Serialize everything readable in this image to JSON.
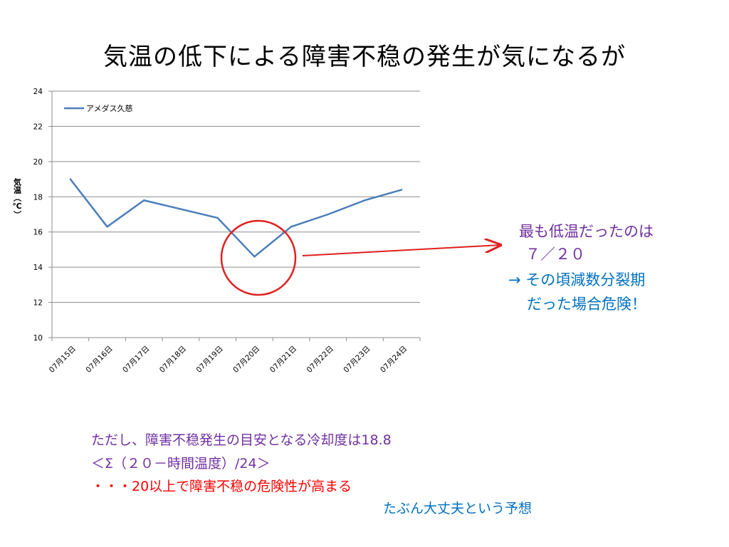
{
  "slide": {
    "title": "気温の低下による障害不稳の発生が気になるが"
  },
  "chart_data": {
    "type": "line",
    "categories": [
      "07月15日",
      "07月16日",
      "07月17日",
      "07月18日",
      "07月19日",
      "07月20日",
      "07月21日",
      "07月22日",
      "07月23日",
      "07月24日"
    ],
    "series": [
      {
        "name": "アメダス久慈",
        "values": [
          19.0,
          16.3,
          17.8,
          17.3,
          16.8,
          14.6,
          16.3,
          17.0,
          17.8,
          18.4
        ],
        "color": "#4a7ebb"
      }
    ],
    "ylabel": "気温（℃）",
    "ylim": [
      10,
      24
    ],
    "yticks": [
      "10",
      "12",
      "14",
      "16",
      "18",
      "20",
      "22",
      "24"
    ],
    "grid": true,
    "legend": "top-left"
  },
  "annotation": {
    "line1": "最も低温だったのは",
    "line2": "７／２０",
    "line3": "→  その頃減数分裂期",
    "line4": "だった場合危険！",
    "color_purple": "#7030a0",
    "color_blue": "#0070c0",
    "circle_color": "#e02020",
    "arrow_color": "#e02020"
  },
  "notes": {
    "line1": "ただし、障害不稳発生の目安となる冷却度は18.8",
    "line2": "＜Σ（２０－時間温度）/24＞",
    "line3": "・・・20以上で障害不稳の危険性が高まる",
    "line4": "たぶん大丈夫という予想",
    "color_purple": "#7030a0",
    "color_red": "#ff0000",
    "color_blue": "#0070c0"
  }
}
